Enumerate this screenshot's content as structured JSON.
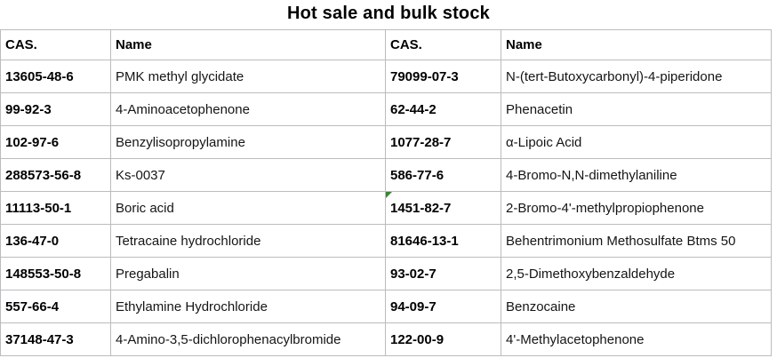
{
  "title": "Hot sale and bulk stock",
  "colors": {
    "grid_border": "#bcbcc0",
    "title_text": "#000000",
    "cas_text": "#000000",
    "name_text": "#151515",
    "flag_green": "#35892e",
    "background": "#ffffff"
  },
  "table": {
    "headers": [
      "CAS.",
      "Name",
      "CAS.",
      "Name"
    ],
    "rows": [
      [
        "13605-48-6",
        "PMK methyl glycidate",
        "79099-07-3",
        "N-(tert-Butoxycarbonyl)-4-piperidone"
      ],
      [
        "99-92-3",
        "4-Aminoacetophenone",
        "62-44-2",
        "Phenacetin"
      ],
      [
        "102-97-6",
        "Benzylisopropylamine",
        "1077-28-7",
        "α-Lipoic Acid"
      ],
      [
        "288573-56-8",
        "Ks-0037",
        "586-77-6",
        "4-Bromo-N,N-dimethylaniline"
      ],
      [
        "11113-50-1",
        "Boric acid",
        "1451-82-7",
        "2-Bromo-4'-methylpropiophenone"
      ],
      [
        "136-47-0",
        "Tetracaine hydrochloride",
        "81646-13-1",
        "Behentrimonium Methosulfate Btms 50"
      ],
      [
        "148553-50-8",
        "Pregabalin",
        "93-02-7",
        "2,5-Dimethoxybenzaldehyde"
      ],
      [
        "557-66-4",
        "Ethylamine Hydrochloride",
        "94-09-7",
        "Benzocaine"
      ],
      [
        "37148-47-3",
        "4-Amino-3,5-dichlorophenacylbromide",
        "122-00-9",
        "4'-Methylacetophenone"
      ]
    ],
    "error_flag": {
      "row_index": 4,
      "col_index": 2,
      "icon": "cell-error-flag-icon"
    }
  }
}
